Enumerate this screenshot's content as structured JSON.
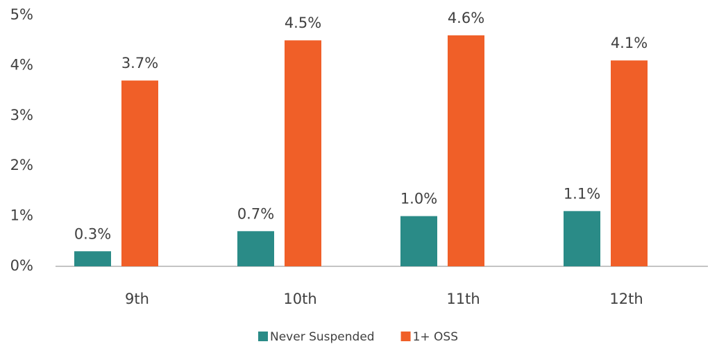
{
  "chart_data": {
    "type": "bar",
    "categories": [
      "9th",
      "10th",
      "11th",
      "12th"
    ],
    "series": [
      {
        "name": "Never Suspended",
        "color": "#2a8b87",
        "values": [
          0.3,
          0.7,
          1.0,
          1.1
        ],
        "value_labels": [
          "0.3%",
          "0.7%",
          "1.0%",
          "1.1%"
        ]
      },
      {
        "name": "1+ OSS",
        "color": "#f05f28",
        "values": [
          3.7,
          4.5,
          4.6,
          4.1
        ],
        "value_labels": [
          "3.7%",
          "4.5%",
          "4.6%",
          "4.1%"
        ]
      }
    ],
    "ylim": [
      0,
      5
    ],
    "yticks": [
      {
        "value": 0,
        "label": "0%"
      },
      {
        "value": 1,
        "label": "1%"
      },
      {
        "value": 2,
        "label": "2%"
      },
      {
        "value": 3,
        "label": "3%"
      },
      {
        "value": 4,
        "label": "4%"
      },
      {
        "value": 5,
        "label": "5%"
      }
    ],
    "grid": false,
    "legend": "bottom"
  }
}
